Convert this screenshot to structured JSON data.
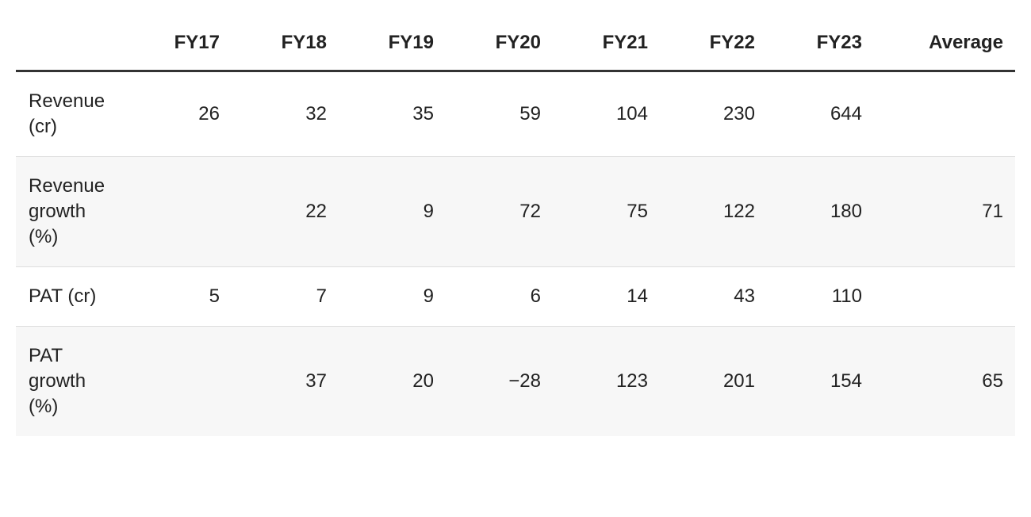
{
  "table": {
    "columns": [
      "FY17",
      "FY18",
      "FY19",
      "FY20",
      "FY21",
      "FY22",
      "FY23",
      "Average"
    ],
    "rows": [
      {
        "label": "Revenue (cr)",
        "cells": [
          26,
          32,
          35,
          59,
          104,
          230,
          644,
          null
        ]
      },
      {
        "label": "Revenue growth (%)",
        "cells": [
          null,
          22,
          9,
          72,
          75,
          122,
          180,
          71
        ]
      },
      {
        "label": "PAT (cr)",
        "cells": [
          5,
          7,
          9,
          6,
          14,
          43,
          110,
          null
        ]
      },
      {
        "label": "PAT growth (%)",
        "cells": [
          null,
          37,
          20,
          "−28",
          123,
          201,
          154,
          65
        ]
      }
    ]
  }
}
